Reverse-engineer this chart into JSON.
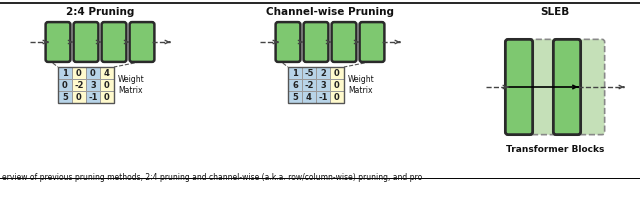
{
  "section1_title": "2:4 Pruning",
  "section2_title": "Channel-wise Pruning",
  "section3_title": "SLEB",
  "matrix1": [
    [
      1,
      0,
      0,
      4
    ],
    [
      0,
      -2,
      3,
      0
    ],
    [
      5,
      0,
      -1,
      0
    ]
  ],
  "matrix2": [
    [
      1,
      -5,
      2,
      0
    ],
    [
      6,
      -2,
      3,
      0
    ],
    [
      5,
      4,
      -1,
      0
    ]
  ],
  "matrix1_blue_cols": [
    0,
    2
  ],
  "matrix1_yellow_cols": [
    1,
    3
  ],
  "matrix2_blue_cols": [
    0,
    1,
    2
  ],
  "matrix2_yellow_cols": [
    3
  ],
  "label_weight_matrix": "Weight\nMatrix",
  "label_transformer_blocks": "Transformer Blocks",
  "bg_color": "#ffffff",
  "block_color_solid": "#7EC870",
  "block_color_dashed": "#c5e0b8",
  "block_border_solid": "#2a2a2a",
  "block_border_dashed": "#888888",
  "cell_blue": "#b8d4e8",
  "cell_yellow": "#fffacd",
  "arrow_color": "#444444",
  "text_color": "#111111",
  "caption_text": "erview of previous pruning methods, 2:4 pruning and channel-wise (a.k.a. row/column-wise) pruning, and pro",
  "s1x": 0.155,
  "s2x": 0.495,
  "s3x": 0.845
}
